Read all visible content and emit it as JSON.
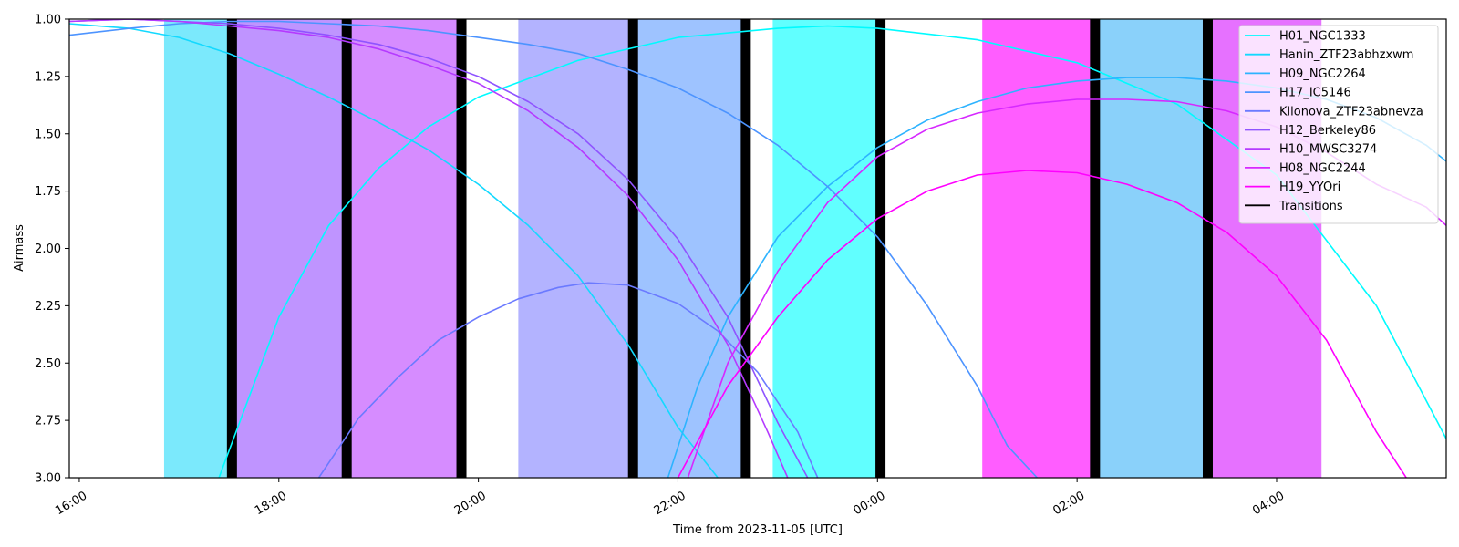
{
  "chart_data": {
    "type": "line",
    "title": "",
    "xlabel": "Time from 2023-11-05 [UTC]",
    "ylabel": "Airmass",
    "x_unit": "hours (UTC, 2023-11-05; values above 24 are 2023-11-06)",
    "xlim": [
      15.9,
      29.7
    ],
    "ylim": [
      3.0,
      1.0
    ],
    "y_inverted": true,
    "x_ticks": [
      {
        "value": 16,
        "label": "16:00"
      },
      {
        "value": 18,
        "label": "18:00"
      },
      {
        "value": 20,
        "label": "20:00"
      },
      {
        "value": 22,
        "label": "22:00"
      },
      {
        "value": 24,
        "label": "00:00"
      },
      {
        "value": 26,
        "label": "02:00"
      },
      {
        "value": 28,
        "label": "04:00"
      }
    ],
    "y_ticks": [
      {
        "value": 1.0,
        "label": "1.00"
      },
      {
        "value": 1.25,
        "label": "1.25"
      },
      {
        "value": 1.5,
        "label": "1.50"
      },
      {
        "value": 1.75,
        "label": "1.75"
      },
      {
        "value": 2.0,
        "label": "2.00"
      },
      {
        "value": 2.25,
        "label": "2.25"
      },
      {
        "value": 2.5,
        "label": "2.50"
      },
      {
        "value": 2.75,
        "label": "2.75"
      },
      {
        "value": 3.0,
        "label": "3.00"
      }
    ],
    "grid": false,
    "legend_position": "top-right",
    "series": [
      {
        "name": "H01_NGC1333",
        "color": "#00fbff",
        "points": [
          [
            17.4,
            3.0
          ],
          [
            18.0,
            2.3
          ],
          [
            18.5,
            1.9
          ],
          [
            19.0,
            1.65
          ],
          [
            19.5,
            1.47
          ],
          [
            20.0,
            1.34
          ],
          [
            21.0,
            1.18
          ],
          [
            22.0,
            1.08
          ],
          [
            23.0,
            1.04
          ],
          [
            23.5,
            1.03
          ],
          [
            24.0,
            1.04
          ],
          [
            25.0,
            1.09
          ],
          [
            26.0,
            1.19
          ],
          [
            27.0,
            1.37
          ],
          [
            28.0,
            1.68
          ],
          [
            29.0,
            2.25
          ],
          [
            29.7,
            2.83
          ]
        ]
      },
      {
        "name": "Hanin_ZTF23abhzxwm",
        "color": "#13d9ff",
        "points": [
          [
            15.9,
            1.02
          ],
          [
            16.5,
            1.04
          ],
          [
            17.0,
            1.08
          ],
          [
            17.5,
            1.15
          ],
          [
            18.0,
            1.24
          ],
          [
            18.5,
            1.34
          ],
          [
            19.0,
            1.45
          ],
          [
            19.5,
            1.57
          ],
          [
            20.0,
            1.72
          ],
          [
            20.5,
            1.9
          ],
          [
            21.0,
            2.12
          ],
          [
            21.5,
            2.42
          ],
          [
            22.0,
            2.78
          ],
          [
            22.4,
            3.0
          ]
        ]
      },
      {
        "name": "H09_NGC2264",
        "color": "#2db3ff",
        "points": [
          [
            21.9,
            3.0
          ],
          [
            22.2,
            2.6
          ],
          [
            22.5,
            2.3
          ],
          [
            23.0,
            1.95
          ],
          [
            23.5,
            1.73
          ],
          [
            24.0,
            1.56
          ],
          [
            24.5,
            1.44
          ],
          [
            25.0,
            1.36
          ],
          [
            25.5,
            1.3
          ],
          [
            26.0,
            1.27
          ],
          [
            26.5,
            1.255
          ],
          [
            27.0,
            1.255
          ],
          [
            27.5,
            1.27
          ],
          [
            28.0,
            1.3
          ],
          [
            28.5,
            1.35
          ],
          [
            29.0,
            1.43
          ],
          [
            29.5,
            1.55
          ],
          [
            29.7,
            1.62
          ]
        ]
      },
      {
        "name": "H17_IC5146",
        "color": "#4d94ff",
        "points": [
          [
            15.9,
            1.07
          ],
          [
            16.5,
            1.04
          ],
          [
            17.0,
            1.02
          ],
          [
            17.5,
            1.01
          ],
          [
            18.0,
            1.01
          ],
          [
            18.5,
            1.02
          ],
          [
            19.0,
            1.03
          ],
          [
            19.5,
            1.05
          ],
          [
            20.0,
            1.08
          ],
          [
            20.5,
            1.11
          ],
          [
            21.0,
            1.15
          ],
          [
            21.5,
            1.22
          ],
          [
            22.0,
            1.3
          ],
          [
            22.5,
            1.41
          ],
          [
            23.0,
            1.55
          ],
          [
            23.5,
            1.73
          ],
          [
            24.0,
            1.95
          ],
          [
            24.5,
            2.25
          ],
          [
            25.0,
            2.6
          ],
          [
            25.3,
            2.86
          ],
          [
            25.6,
            3.0
          ]
        ]
      },
      {
        "name": "Kilonova_ZTF23abnevza",
        "color": "#6b7aff",
        "points": [
          [
            18.4,
            3.0
          ],
          [
            18.8,
            2.74
          ],
          [
            19.2,
            2.56
          ],
          [
            19.6,
            2.4
          ],
          [
            20.0,
            2.3
          ],
          [
            20.4,
            2.22
          ],
          [
            20.8,
            2.17
          ],
          [
            21.1,
            2.15
          ],
          [
            21.5,
            2.16
          ],
          [
            22.0,
            2.24
          ],
          [
            22.4,
            2.36
          ],
          [
            22.8,
            2.54
          ],
          [
            23.2,
            2.8
          ],
          [
            23.4,
            3.0
          ]
        ]
      },
      {
        "name": "H12_Berkeley86",
        "color": "#8f54ff",
        "points": [
          [
            15.9,
            1.01
          ],
          [
            16.5,
            1.0
          ],
          [
            17.0,
            1.01
          ],
          [
            17.5,
            1.02
          ],
          [
            18.0,
            1.04
          ],
          [
            18.5,
            1.07
          ],
          [
            19.0,
            1.11
          ],
          [
            19.5,
            1.17
          ],
          [
            20.0,
            1.25
          ],
          [
            20.5,
            1.36
          ],
          [
            21.0,
            1.5
          ],
          [
            21.5,
            1.7
          ],
          [
            22.0,
            1.96
          ],
          [
            22.5,
            2.3
          ],
          [
            23.0,
            2.76
          ],
          [
            23.3,
            3.0
          ]
        ]
      },
      {
        "name": "H10_MWSC3274",
        "color": "#b53aff",
        "points": [
          [
            15.9,
            1.01
          ],
          [
            16.5,
            1.0
          ],
          [
            17.0,
            1.01
          ],
          [
            17.5,
            1.03
          ],
          [
            18.0,
            1.05
          ],
          [
            18.5,
            1.08
          ],
          [
            19.0,
            1.13
          ],
          [
            19.5,
            1.2
          ],
          [
            20.0,
            1.28
          ],
          [
            20.5,
            1.4
          ],
          [
            21.0,
            1.56
          ],
          [
            21.5,
            1.77
          ],
          [
            22.0,
            2.05
          ],
          [
            22.5,
            2.42
          ],
          [
            22.9,
            2.8
          ],
          [
            23.1,
            3.0
          ]
        ]
      },
      {
        "name": "H08_NGC2244",
        "color": "#d628ff",
        "points": [
          [
            22.1,
            3.0
          ],
          [
            22.5,
            2.5
          ],
          [
            23.0,
            2.1
          ],
          [
            23.5,
            1.8
          ],
          [
            24.0,
            1.6
          ],
          [
            24.5,
            1.48
          ],
          [
            25.0,
            1.41
          ],
          [
            25.5,
            1.37
          ],
          [
            26.0,
            1.35
          ],
          [
            26.5,
            1.35
          ],
          [
            27.0,
            1.36
          ],
          [
            27.5,
            1.4
          ],
          [
            28.0,
            1.47
          ],
          [
            28.5,
            1.58
          ],
          [
            29.0,
            1.72
          ],
          [
            29.5,
            1.82
          ],
          [
            29.7,
            1.9
          ]
        ]
      },
      {
        "name": "H19_YYOri",
        "color": "#ff00ff",
        "points": [
          [
            22.0,
            3.0
          ],
          [
            22.5,
            2.6
          ],
          [
            23.0,
            2.3
          ],
          [
            23.5,
            2.05
          ],
          [
            24.0,
            1.87
          ],
          [
            24.5,
            1.75
          ],
          [
            25.0,
            1.68
          ],
          [
            25.5,
            1.66
          ],
          [
            26.0,
            1.67
          ],
          [
            26.5,
            1.72
          ],
          [
            27.0,
            1.8
          ],
          [
            27.5,
            1.93
          ],
          [
            28.0,
            2.12
          ],
          [
            28.5,
            2.4
          ],
          [
            29.0,
            2.8
          ],
          [
            29.3,
            3.0
          ]
        ]
      }
    ],
    "transitions_label": "Transitions",
    "transitions_color": "#000000",
    "transitions": [
      17.53,
      18.68,
      19.83,
      21.55,
      22.68,
      24.03,
      26.18,
      27.31
    ],
    "shaded_blocks": [
      {
        "start": 16.85,
        "end": 17.53,
        "color": "#7be9fc"
      },
      {
        "start": 17.53,
        "end": 18.68,
        "color": "#bf94ff"
      },
      {
        "start": 18.68,
        "end": 19.83,
        "color": "#d68cff"
      },
      {
        "start": 20.4,
        "end": 21.55,
        "color": "#b3b3ff"
      },
      {
        "start": 21.55,
        "end": 22.68,
        "color": "#9ec3ff"
      },
      {
        "start": 22.95,
        "end": 24.03,
        "color": "#61ffff"
      },
      {
        "start": 25.05,
        "end": 26.18,
        "color": "#ff5dff"
      },
      {
        "start": 26.18,
        "end": 27.31,
        "color": "#8ad1fa"
      },
      {
        "start": 27.31,
        "end": 28.45,
        "color": "#e671ff"
      }
    ]
  }
}
